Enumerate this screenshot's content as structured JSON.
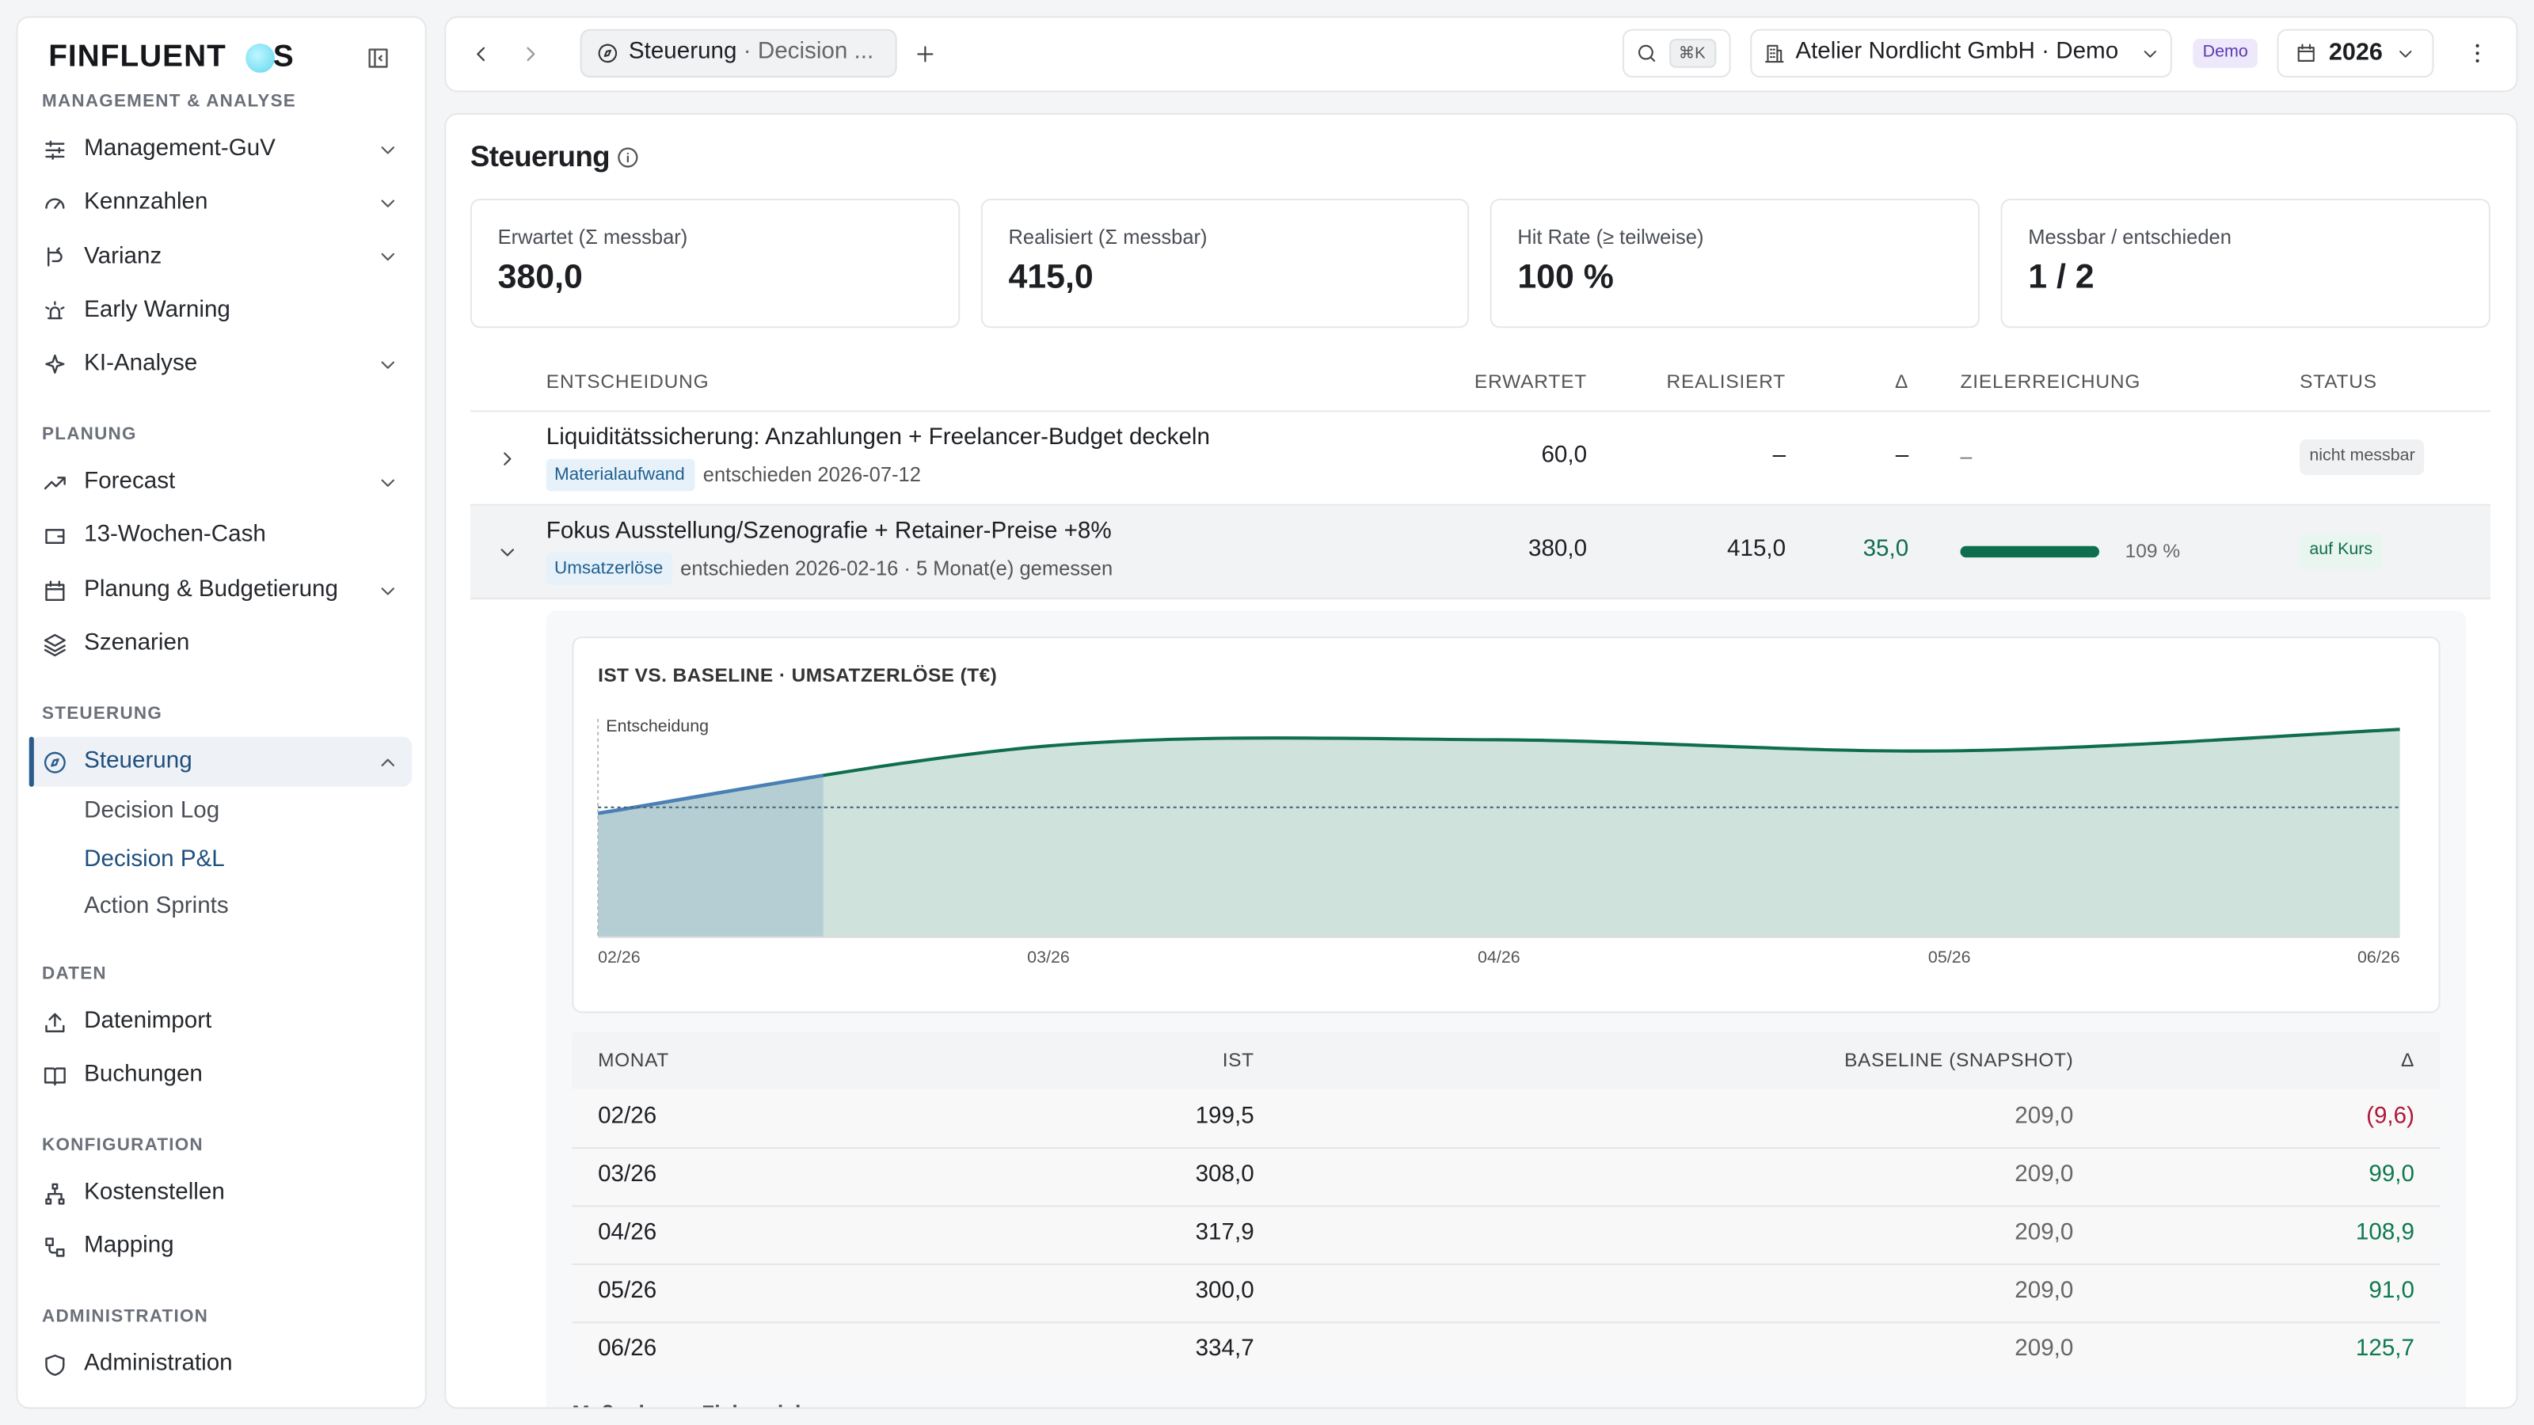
{
  "sidebar": {
    "logo_left": "FINFLUENT",
    "logo_right": "S",
    "sections": [
      {
        "title": "MANAGEMENT & ANALYSE",
        "items": [
          {
            "label": "Management-GuV",
            "expandable": true
          },
          {
            "label": "Kennzahlen",
            "expandable": true
          },
          {
            "label": "Varianz",
            "expandable": true
          },
          {
            "label": "Early Warning",
            "expandable": false
          },
          {
            "label": "KI-Analyse",
            "expandable": true
          }
        ]
      },
      {
        "title": "PLANUNG",
        "items": [
          {
            "label": "Forecast",
            "expandable": true
          },
          {
            "label": "13-Wochen-Cash",
            "expandable": false
          },
          {
            "label": "Planung & Budgetierung",
            "expandable": true
          },
          {
            "label": "Szenarien",
            "expandable": false
          }
        ]
      },
      {
        "title": "STEUERUNG",
        "items": [
          {
            "label": "Steuerung",
            "expandable": true,
            "expanded": true,
            "active": true,
            "children": [
              {
                "label": "Decision Log"
              },
              {
                "label": "Decision P&L",
                "active": true
              },
              {
                "label": "Action Sprints"
              }
            ]
          }
        ]
      },
      {
        "title": "DATEN",
        "items": [
          {
            "label": "Datenimport",
            "expandable": false
          },
          {
            "label": "Buchungen",
            "expandable": false
          }
        ]
      },
      {
        "title": "KONFIGURATION",
        "items": [
          {
            "label": "Kostenstellen",
            "expandable": false
          },
          {
            "label": "Mapping",
            "expandable": false
          }
        ]
      },
      {
        "title": "ADMINISTRATION",
        "items": [
          {
            "label": "Administration",
            "expandable": false
          }
        ]
      }
    ]
  },
  "topbar": {
    "tab_title": "Steuerung",
    "tab_subtitle": "· Decision ...",
    "shortcut": "⌘K",
    "company": "Atelier Nordlicht GmbH · Demo",
    "badge": "Demo",
    "year": "2026"
  },
  "page": {
    "title": "Steuerung",
    "kpis": [
      {
        "label": "Erwartet (Σ messbar)",
        "value": "380,0"
      },
      {
        "label": "Realisiert (Σ messbar)",
        "value": "415,0"
      },
      {
        "label": "Hit Rate (≥ teilweise)",
        "value": "100 %"
      },
      {
        "label": "Messbar / entschieden",
        "value": "1 / 2"
      }
    ],
    "decisions": {
      "headers": [
        "ENTSCHEIDUNG",
        "ERWARTET",
        "REALISIERT",
        "Δ",
        "ZIELERREICHUNG",
        "STATUS"
      ],
      "rows": [
        {
          "title": "Liquiditätssicherung: Anzahlungen + Freelancer-Budget deckeln",
          "tag": "Materialaufwand",
          "meta": "entschieden 2026-07-12",
          "erwartet": "60,0",
          "realisiert": "–",
          "delta": "–",
          "ziel": "–",
          "status": "nicht messbar",
          "status_tone": "neutral",
          "expanded": false
        },
        {
          "title": "Fokus Ausstellung/Szenografie + Retainer-Preise +8%",
          "tag": "Umsatzerlöse",
          "meta": "entschieden 2026-02-16 · 5 Monat(e) gemessen",
          "erwartet": "380,0",
          "realisiert": "415,0",
          "delta": "35,0",
          "delta_tone": "positive",
          "progress": 109,
          "progress_label": "109 %",
          "status": "auf Kurs",
          "status_tone": "positive",
          "expanded": true
        }
      ]
    },
    "detail": {
      "headers": [
        "MONAT",
        "IST",
        "BASELINE (SNAPSHOT)",
        "Δ"
      ],
      "rows": [
        [
          "02/26",
          "199,5",
          "209,0",
          "(9,6)"
        ],
        [
          "03/26",
          "308,0",
          "209,0",
          "99,0"
        ],
        [
          "04/26",
          "317,9",
          "209,0",
          "108,9"
        ],
        [
          "05/26",
          "300,0",
          "209,0",
          "91,0"
        ],
        [
          "06/26",
          "334,7",
          "209,0",
          "125,7"
        ]
      ],
      "delta_tones": [
        "negative",
        "positive",
        "positive",
        "positive",
        "positive"
      ],
      "footer": "Maßnahmen-Zielerreichung"
    }
  },
  "chart_data": {
    "type": "area",
    "title": "IST VS. BASELINE · UMSATZERLÖSE (T€)",
    "x": [
      "02/26",
      "03/26",
      "04/26",
      "05/26",
      "06/26"
    ],
    "series": [
      {
        "color": "#0f6e4e",
        "values": [
          199.5,
          308.0,
          317.9,
          300.0,
          334.7
        ]
      }
    ],
    "baseline": 209,
    "annotation": "Entscheidung",
    "pre_decision_color": "#4a80b3"
  }
}
